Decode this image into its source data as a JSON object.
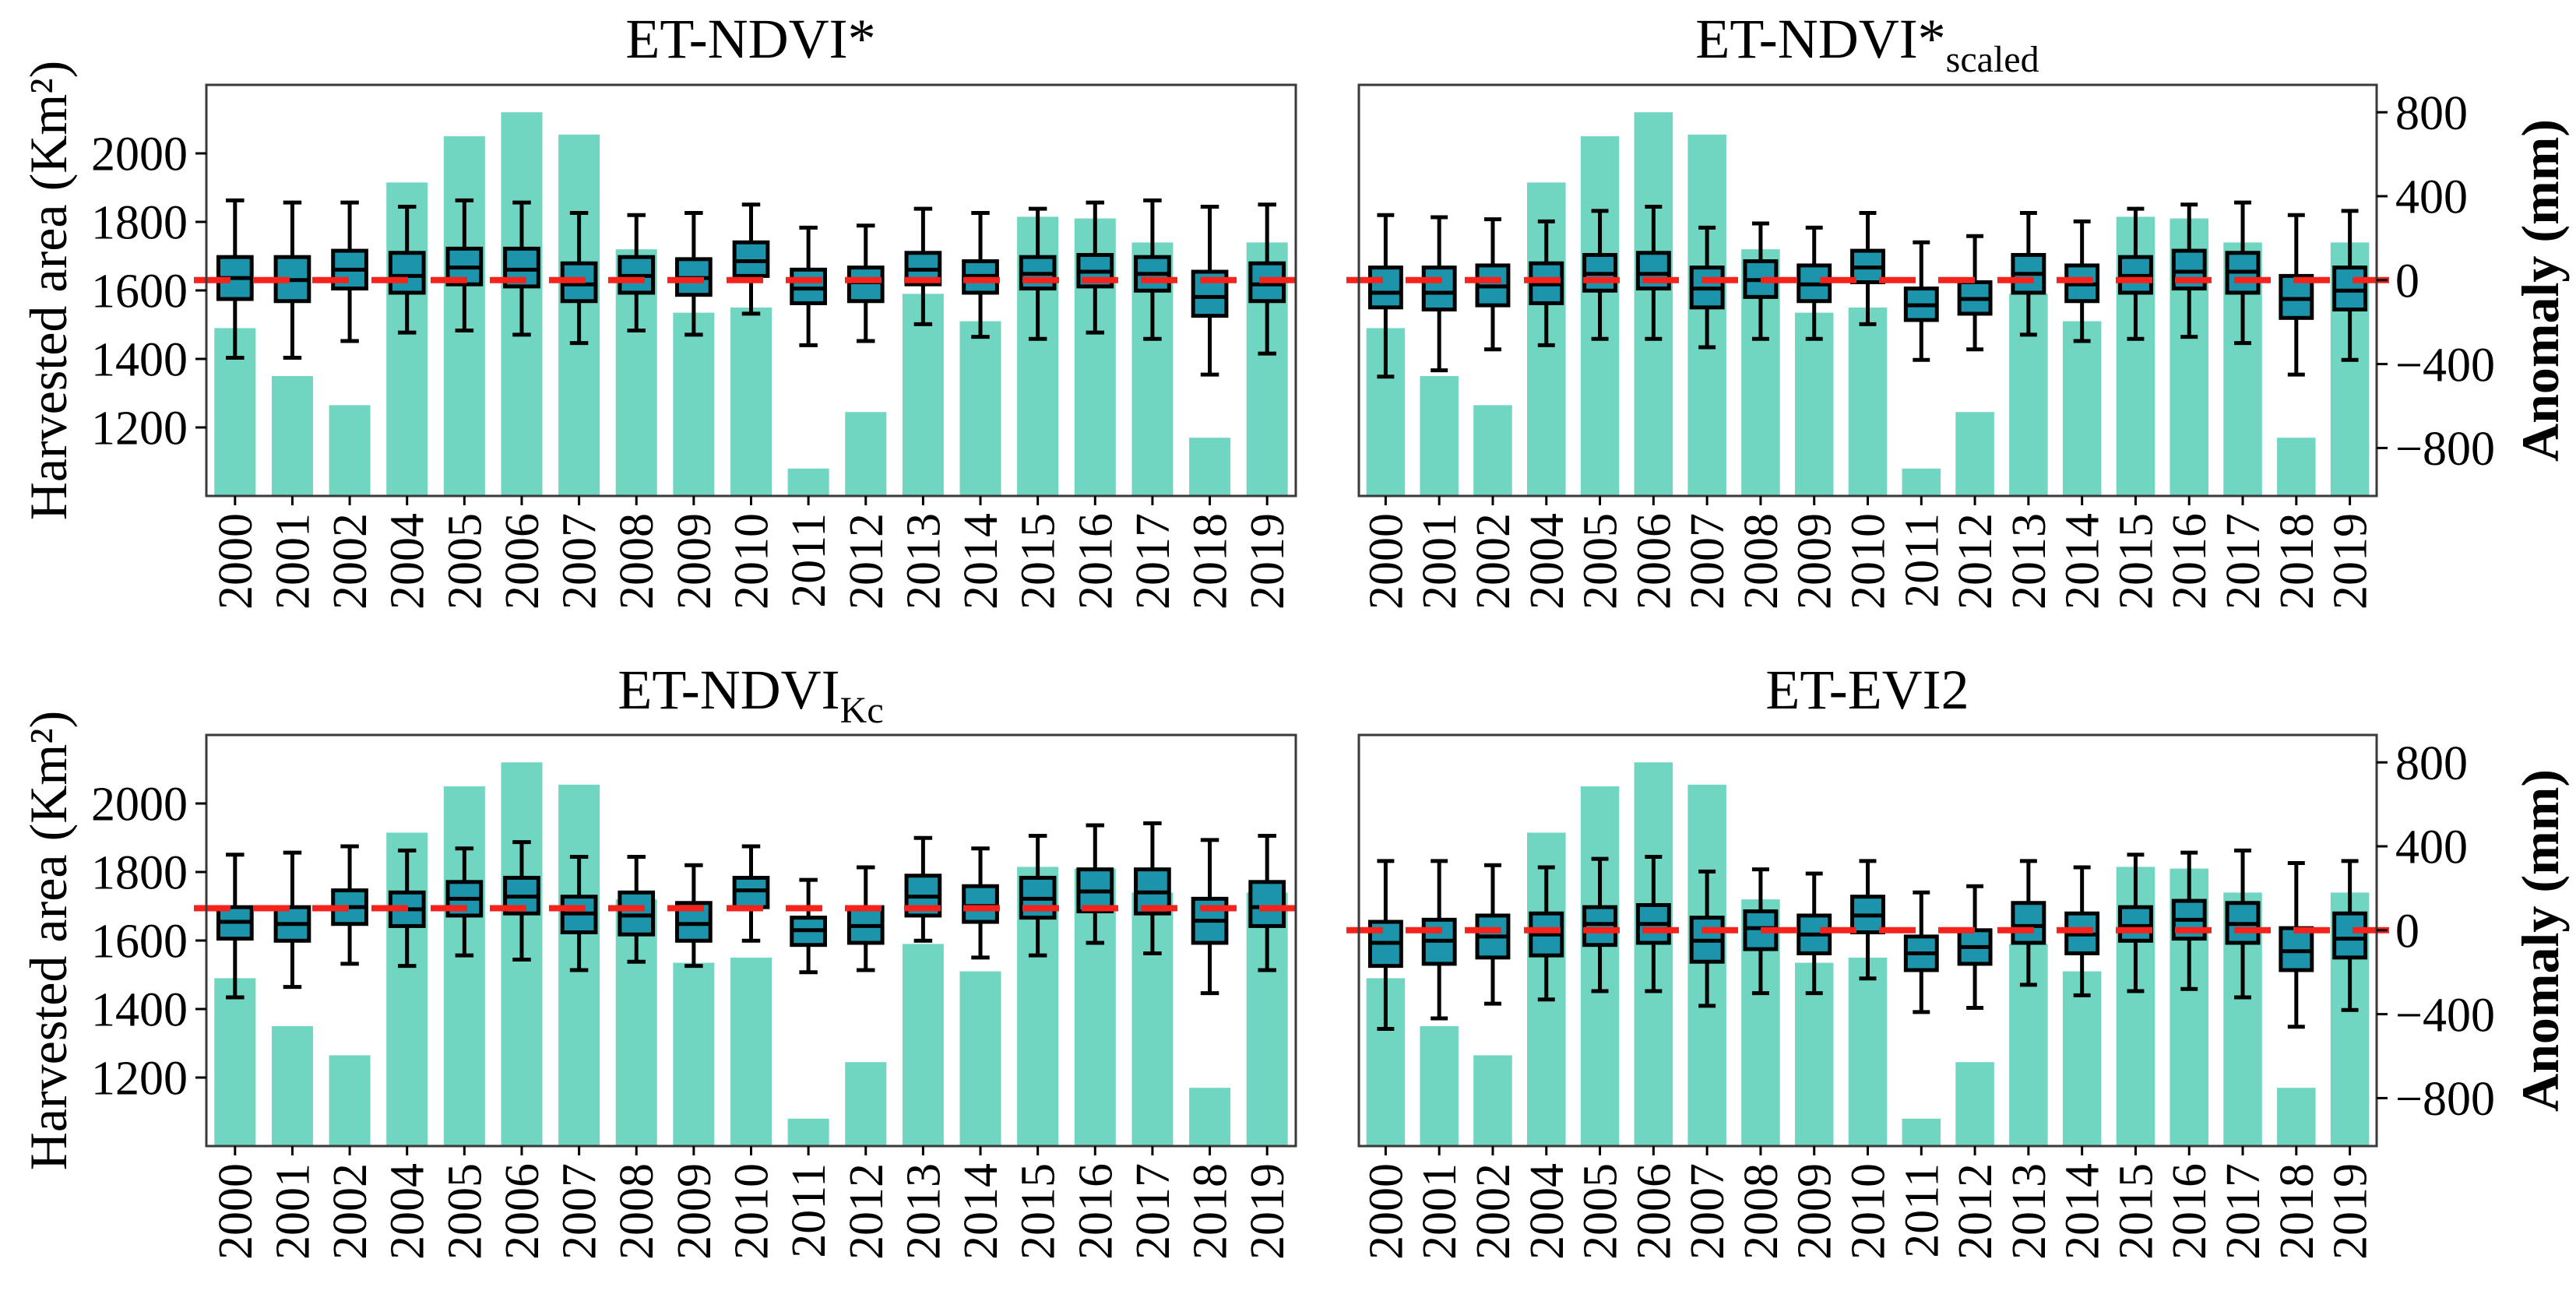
{
  "chart_data": {
    "type": "bar+boxplot",
    "description": "Four-panel figure: teal bars = annual harvested area (left axis, Km2); overlaid box-and-whisker plots = ET anomaly distributions (right axis, mm); red dashed reference line per panel.",
    "categories": [
      "2000",
      "2001",
      "2002",
      "2004",
      "2005",
      "2006",
      "2007",
      "2008",
      "2009",
      "2010",
      "2011",
      "2012",
      "2013",
      "2014",
      "2015",
      "2016",
      "2017",
      "2018",
      "2019"
    ],
    "bars_km2": [
      1490,
      1350,
      1265,
      1915,
      2050,
      2120,
      2055,
      1720,
      1535,
      1550,
      1080,
      1245,
      1590,
      1510,
      1815,
      1810,
      1740,
      1170,
      1740
    ],
    "left_axis": {
      "label": "Harvested area (Km²)",
      "ticks": [
        2000,
        1800,
        1600,
        1400,
        1200
      ],
      "range": [
        1000,
        2200
      ]
    },
    "right_axis": {
      "label": "Anomaly (mm)",
      "ticks": [
        800,
        400,
        0,
        -400,
        -800
      ],
      "zero_at_left_value": 1630,
      "left_units_per_mm": 0.6125
    },
    "colors": {
      "bar": "#71d6c1",
      "box_fill": "#1b94ac",
      "box_edge": "#000000",
      "red_line": "#f5231c",
      "frame": "#3a3a3a"
    },
    "legend": "none",
    "grid": false,
    "box_stats_order": [
      "whisker_high",
      "q3",
      "median",
      "q1",
      "whisker_low"
    ],
    "panels": [
      {
        "title": "ET-NDVI*",
        "title_subscript": "",
        "red_line_mm": 0,
        "boxes_mm": [
          [
            380,
            110,
            10,
            -90,
            -370
          ],
          [
            370,
            110,
            0,
            -100,
            -370
          ],
          [
            370,
            140,
            50,
            -40,
            -290
          ],
          [
            350,
            130,
            20,
            -60,
            -250
          ],
          [
            380,
            150,
            60,
            -20,
            -240
          ],
          [
            370,
            150,
            50,
            -30,
            -260
          ],
          [
            320,
            80,
            -20,
            -100,
            -300
          ],
          [
            310,
            110,
            20,
            -60,
            -240
          ],
          [
            320,
            100,
            10,
            -70,
            -260
          ],
          [
            360,
            180,
            90,
            20,
            -160
          ],
          [
            250,
            50,
            -40,
            -110,
            -310
          ],
          [
            260,
            60,
            -10,
            -100,
            -290
          ],
          [
            340,
            130,
            50,
            -20,
            -210
          ],
          [
            320,
            90,
            20,
            -60,
            -270
          ],
          [
            340,
            110,
            30,
            -40,
            -280
          ],
          [
            370,
            120,
            40,
            -30,
            -250
          ],
          [
            380,
            110,
            30,
            -50,
            -280
          ],
          [
            350,
            40,
            -80,
            -170,
            -450
          ],
          [
            360,
            80,
            -20,
            -100,
            -350
          ]
        ]
      },
      {
        "title": "ET-NDVI*",
        "title_subscript": "scaled",
        "red_line_mm": 0,
        "boxes_mm": [
          [
            310,
            60,
            -60,
            -130,
            -460
          ],
          [
            300,
            60,
            -60,
            -140,
            -430
          ],
          [
            290,
            70,
            -30,
            -120,
            -330
          ],
          [
            280,
            80,
            -20,
            -110,
            -310
          ],
          [
            330,
            120,
            30,
            -50,
            -280
          ],
          [
            350,
            130,
            30,
            -40,
            -280
          ],
          [
            250,
            60,
            -40,
            -130,
            -320
          ],
          [
            270,
            90,
            0,
            -80,
            -280
          ],
          [
            250,
            70,
            -20,
            -100,
            -280
          ],
          [
            320,
            140,
            60,
            -10,
            -210
          ],
          [
            180,
            -40,
            -120,
            -190,
            -380
          ],
          [
            210,
            -10,
            -90,
            -160,
            -330
          ],
          [
            320,
            120,
            30,
            -60,
            -260
          ],
          [
            280,
            70,
            -20,
            -100,
            -290
          ],
          [
            340,
            110,
            20,
            -60,
            -280
          ],
          [
            360,
            140,
            40,
            -40,
            -270
          ],
          [
            370,
            130,
            40,
            -60,
            -300
          ],
          [
            310,
            20,
            -90,
            -180,
            -450
          ],
          [
            330,
            60,
            -50,
            -140,
            -380
          ]
        ]
      },
      {
        "title": "ET-NDVI",
        "title_subscript": "Kc",
        "red_line_mm": 105,
        "boxes_mm": [
          [
            360,
            110,
            40,
            -40,
            -320
          ],
          [
            370,
            110,
            30,
            -50,
            -270
          ],
          [
            400,
            190,
            110,
            30,
            -160
          ],
          [
            380,
            180,
            100,
            20,
            -170
          ],
          [
            390,
            230,
            150,
            70,
            -120
          ],
          [
            420,
            250,
            160,
            80,
            -140
          ],
          [
            350,
            160,
            80,
            -10,
            -190
          ],
          [
            350,
            180,
            70,
            -20,
            -150
          ],
          [
            310,
            130,
            30,
            -50,
            -170
          ],
          [
            400,
            250,
            190,
            110,
            -50
          ],
          [
            240,
            60,
            0,
            -70,
            -200
          ],
          [
            300,
            110,
            20,
            -60,
            -190
          ],
          [
            440,
            260,
            160,
            70,
            -50
          ],
          [
            390,
            210,
            115,
            40,
            -130
          ],
          [
            450,
            250,
            150,
            60,
            -120
          ],
          [
            500,
            290,
            185,
            90,
            -60
          ],
          [
            510,
            290,
            180,
            80,
            -110
          ],
          [
            430,
            150,
            45,
            -60,
            -300
          ],
          [
            450,
            230,
            110,
            20,
            -190
          ]
        ]
      },
      {
        "title": "ET-EVI2",
        "title_subscript": "",
        "red_line_mm": 0,
        "boxes_mm": [
          [
            330,
            40,
            -60,
            -170,
            -470
          ],
          [
            330,
            50,
            -50,
            -160,
            -420
          ],
          [
            310,
            70,
            -30,
            -130,
            -350
          ],
          [
            300,
            80,
            -20,
            -120,
            -330
          ],
          [
            340,
            110,
            30,
            -70,
            -290
          ],
          [
            350,
            120,
            30,
            -60,
            -290
          ],
          [
            280,
            60,
            -50,
            -150,
            -360
          ],
          [
            290,
            90,
            10,
            -90,
            -300
          ],
          [
            270,
            70,
            -20,
            -110,
            -300
          ],
          [
            330,
            160,
            70,
            -10,
            -230
          ],
          [
            180,
            -30,
            -110,
            -190,
            -390
          ],
          [
            210,
            0,
            -80,
            -160,
            -370
          ],
          [
            330,
            130,
            20,
            -60,
            -260
          ],
          [
            300,
            80,
            -20,
            -110,
            -310
          ],
          [
            360,
            110,
            20,
            -50,
            -290
          ],
          [
            370,
            140,
            50,
            -40,
            -280
          ],
          [
            380,
            130,
            30,
            -60,
            -320
          ],
          [
            320,
            10,
            -100,
            -190,
            -460
          ],
          [
            330,
            80,
            -40,
            -130,
            -380
          ]
        ]
      }
    ]
  }
}
